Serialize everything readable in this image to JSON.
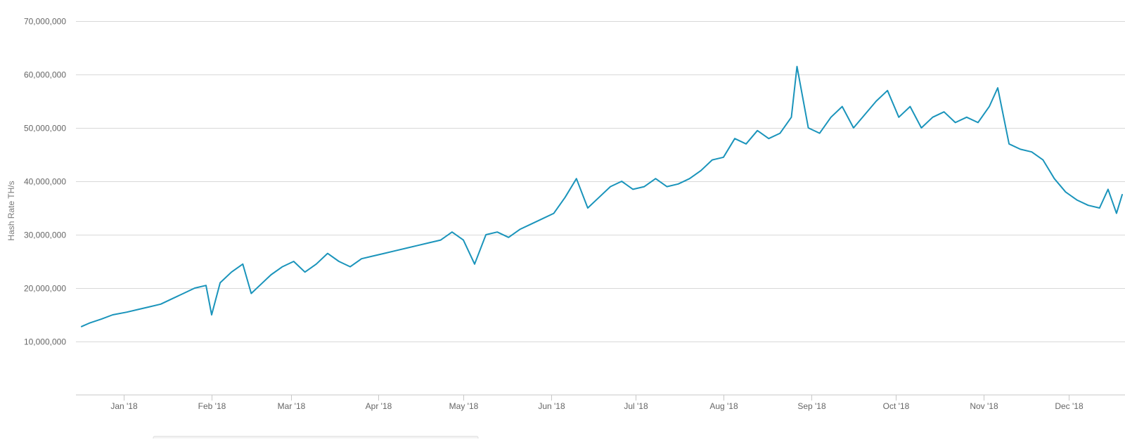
{
  "chart_data": {
    "type": "line",
    "title": "",
    "xlabel": "",
    "ylabel": "Hash Rate TH/s",
    "ylim": [
      0,
      70000000
    ],
    "yticks": [
      10000000,
      20000000,
      30000000,
      40000000,
      50000000,
      60000000,
      70000000
    ],
    "ytick_labels": [
      "10,000,000",
      "20,000,000",
      "30,000,000",
      "40,000,000",
      "50,000,000",
      "60,000,000",
      "70,000,000"
    ],
    "xlim": [
      "2017-12-15",
      "2018-12-21"
    ],
    "xtick_dates": [
      "2018-01-01",
      "2018-02-01",
      "2018-03-01",
      "2018-04-01",
      "2018-05-01",
      "2018-06-01",
      "2018-07-01",
      "2018-08-01",
      "2018-09-01",
      "2018-10-01",
      "2018-11-01",
      "2018-12-01"
    ],
    "xtick_labels": [
      "Jan '18",
      "Feb '18",
      "Mar '18",
      "Apr '18",
      "May '18",
      "Jun '18",
      "Jul '18",
      "Aug '18",
      "Sep '18",
      "Oct '18",
      "Nov '18",
      "Dec '18"
    ],
    "grid": true,
    "legend": "none",
    "series": [
      {
        "color": "#1a94bb",
        "points": [
          [
            "2017-12-17",
            12800000
          ],
          [
            "2017-12-20",
            13500000
          ],
          [
            "2017-12-24",
            14200000
          ],
          [
            "2017-12-28",
            15000000
          ],
          [
            "2018-01-02",
            15500000
          ],
          [
            "2018-01-06",
            16000000
          ],
          [
            "2018-01-10",
            16500000
          ],
          [
            "2018-01-14",
            17000000
          ],
          [
            "2018-01-18",
            18000000
          ],
          [
            "2018-01-22",
            19000000
          ],
          [
            "2018-01-26",
            20000000
          ],
          [
            "2018-01-30",
            20500000
          ],
          [
            "2018-02-01",
            15000000
          ],
          [
            "2018-02-04",
            21000000
          ],
          [
            "2018-02-08",
            23000000
          ],
          [
            "2018-02-12",
            24500000
          ],
          [
            "2018-02-15",
            19000000
          ],
          [
            "2018-02-18",
            20500000
          ],
          [
            "2018-02-22",
            22500000
          ],
          [
            "2018-02-26",
            24000000
          ],
          [
            "2018-03-02",
            25000000
          ],
          [
            "2018-03-06",
            23000000
          ],
          [
            "2018-03-10",
            24500000
          ],
          [
            "2018-03-14",
            26500000
          ],
          [
            "2018-03-18",
            25000000
          ],
          [
            "2018-03-22",
            24000000
          ],
          [
            "2018-03-26",
            25500000
          ],
          [
            "2018-03-30",
            26000000
          ],
          [
            "2018-04-03",
            26500000
          ],
          [
            "2018-04-07",
            27000000
          ],
          [
            "2018-04-11",
            27500000
          ],
          [
            "2018-04-15",
            28000000
          ],
          [
            "2018-04-19",
            28500000
          ],
          [
            "2018-04-23",
            29000000
          ],
          [
            "2018-04-27",
            30500000
          ],
          [
            "2018-05-01",
            29000000
          ],
          [
            "2018-05-05",
            24500000
          ],
          [
            "2018-05-09",
            30000000
          ],
          [
            "2018-05-13",
            30500000
          ],
          [
            "2018-05-17",
            29500000
          ],
          [
            "2018-05-21",
            31000000
          ],
          [
            "2018-05-25",
            32000000
          ],
          [
            "2018-05-29",
            33000000
          ],
          [
            "2018-06-02",
            34000000
          ],
          [
            "2018-06-06",
            37000000
          ],
          [
            "2018-06-10",
            40500000
          ],
          [
            "2018-06-14",
            35000000
          ],
          [
            "2018-06-18",
            37000000
          ],
          [
            "2018-06-22",
            39000000
          ],
          [
            "2018-06-26",
            40000000
          ],
          [
            "2018-06-30",
            38500000
          ],
          [
            "2018-07-04",
            39000000
          ],
          [
            "2018-07-08",
            40500000
          ],
          [
            "2018-07-12",
            39000000
          ],
          [
            "2018-07-16",
            39500000
          ],
          [
            "2018-07-20",
            40500000
          ],
          [
            "2018-07-24",
            42000000
          ],
          [
            "2018-07-28",
            44000000
          ],
          [
            "2018-08-01",
            44500000
          ],
          [
            "2018-08-05",
            48000000
          ],
          [
            "2018-08-09",
            47000000
          ],
          [
            "2018-08-13",
            49500000
          ],
          [
            "2018-08-17",
            48000000
          ],
          [
            "2018-08-21",
            49000000
          ],
          [
            "2018-08-25",
            52000000
          ],
          [
            "2018-08-27",
            61500000
          ],
          [
            "2018-08-31",
            50000000
          ],
          [
            "2018-09-04",
            49000000
          ],
          [
            "2018-09-08",
            52000000
          ],
          [
            "2018-09-12",
            54000000
          ],
          [
            "2018-09-16",
            50000000
          ],
          [
            "2018-09-20",
            52500000
          ],
          [
            "2018-09-24",
            55000000
          ],
          [
            "2018-09-28",
            57000000
          ],
          [
            "2018-10-02",
            52000000
          ],
          [
            "2018-10-06",
            54000000
          ],
          [
            "2018-10-10",
            50000000
          ],
          [
            "2018-10-14",
            52000000
          ],
          [
            "2018-10-18",
            53000000
          ],
          [
            "2018-10-22",
            51000000
          ],
          [
            "2018-10-26",
            52000000
          ],
          [
            "2018-10-30",
            51000000
          ],
          [
            "2018-11-03",
            54000000
          ],
          [
            "2018-11-06",
            57500000
          ],
          [
            "2018-11-10",
            47000000
          ],
          [
            "2018-11-14",
            46000000
          ],
          [
            "2018-11-18",
            45500000
          ],
          [
            "2018-11-22",
            44000000
          ],
          [
            "2018-11-26",
            40500000
          ],
          [
            "2018-11-30",
            38000000
          ],
          [
            "2018-12-04",
            36500000
          ],
          [
            "2018-12-08",
            35500000
          ],
          [
            "2018-12-12",
            35000000
          ],
          [
            "2018-12-15",
            38500000
          ],
          [
            "2018-12-18",
            34000000
          ],
          [
            "2018-12-20",
            37500000
          ]
        ]
      }
    ]
  }
}
